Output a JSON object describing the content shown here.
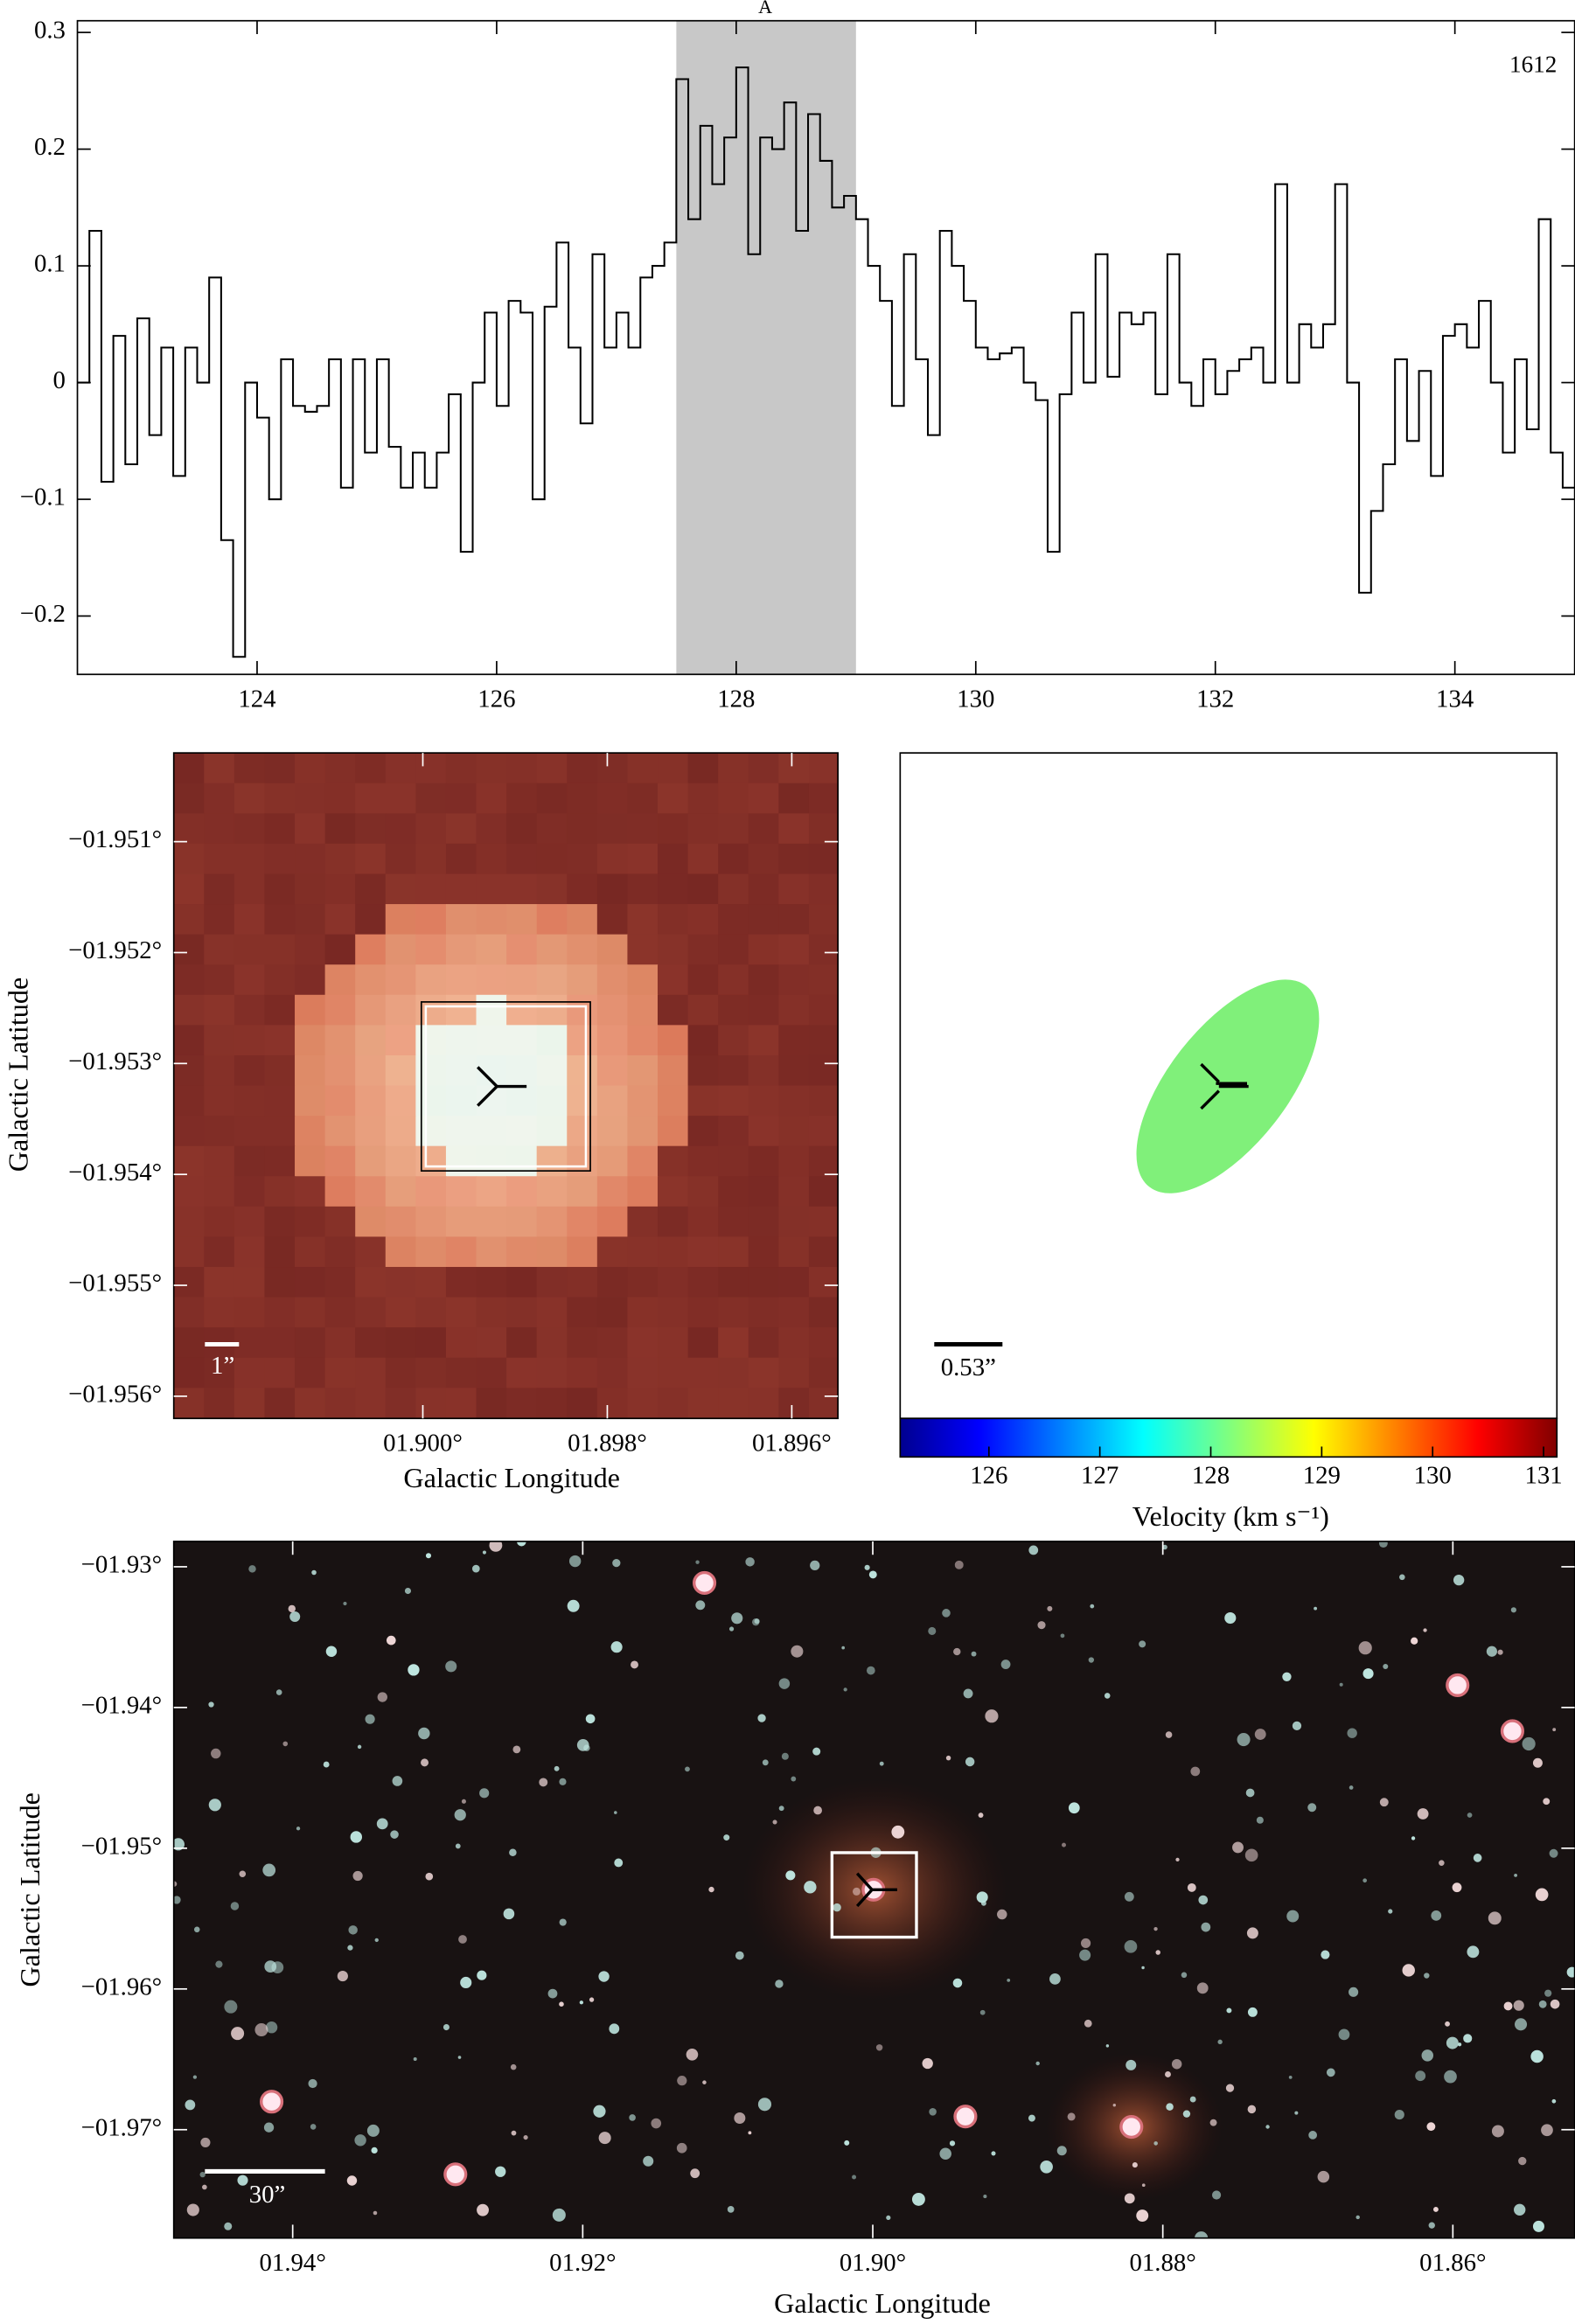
{
  "chart_data": [
    {
      "type": "step",
      "annotation": "A",
      "label": "1612",
      "color": "#000000",
      "shade_color": "#c8c8c8",
      "shaded_range": [
        127.5,
        129.0
      ],
      "x": [
        122.5,
        122.6,
        122.7,
        122.8,
        122.9,
        123.0,
        123.1,
        123.2,
        123.3,
        123.4,
        123.5,
        123.6,
        123.7,
        123.8,
        123.9,
        124.0,
        124.1,
        124.2,
        124.3,
        124.4,
        124.5,
        124.6,
        124.7,
        124.8,
        124.9,
        125.0,
        125.1,
        125.2,
        125.3,
        125.4,
        125.5,
        125.6,
        125.7,
        125.8,
        125.9,
        126.0,
        126.1,
        126.2,
        126.3,
        126.4,
        126.5,
        126.6,
        126.7,
        126.8,
        126.9,
        127.0,
        127.1,
        127.2,
        127.3,
        127.4,
        127.5,
        127.6,
        127.7,
        127.8,
        127.9,
        128.0,
        128.1,
        128.2,
        128.3,
        128.4,
        128.5,
        128.6,
        128.7,
        128.8,
        128.9,
        129.0,
        129.1,
        129.2,
        129.3,
        129.4,
        129.5,
        129.6,
        129.7,
        129.8,
        129.9,
        130.0,
        130.1,
        130.2,
        130.3,
        130.4,
        130.5,
        130.6,
        130.7,
        130.8,
        130.9,
        131.0,
        131.1,
        131.2,
        131.3,
        131.4,
        131.5,
        131.6,
        131.7,
        131.8,
        131.9,
        132.0,
        132.1,
        132.2,
        132.3,
        132.4,
        132.5,
        132.6,
        132.7,
        132.8,
        132.9,
        133.0,
        133.1,
        133.2,
        133.3,
        133.4,
        133.5,
        133.6,
        133.7,
        133.8,
        133.9,
        134.0,
        134.1,
        134.2,
        134.3,
        134.4,
        134.5,
        134.6,
        134.7,
        134.8,
        134.9
      ],
      "values": [
        0.0,
        0.13,
        -0.085,
        0.04,
        -0.07,
        0.055,
        -0.045,
        0.03,
        -0.08,
        0.03,
        0.0,
        0.09,
        -0.135,
        -0.235,
        0.0,
        -0.03,
        -0.1,
        0.02,
        -0.02,
        -0.025,
        -0.02,
        0.02,
        -0.09,
        0.02,
        -0.06,
        0.02,
        -0.055,
        -0.09,
        -0.06,
        -0.09,
        -0.06,
        -0.01,
        -0.145,
        0.0,
        0.06,
        -0.02,
        0.07,
        0.06,
        -0.1,
        0.065,
        0.12,
        0.03,
        -0.035,
        0.11,
        0.03,
        0.06,
        0.03,
        0.09,
        0.1,
        0.12,
        0.26,
        0.14,
        0.22,
        0.17,
        0.21,
        0.27,
        0.11,
        0.21,
        0.2,
        0.24,
        0.13,
        0.23,
        0.19,
        0.15,
        0.16,
        0.14,
        0.1,
        0.07,
        -0.02,
        0.11,
        0.02,
        -0.045,
        0.13,
        0.1,
        0.07,
        0.03,
        0.02,
        0.025,
        0.03,
        0.0,
        -0.015,
        -0.145,
        -0.01,
        0.06,
        0.0,
        0.11,
        0.005,
        0.06,
        0.05,
        0.06,
        -0.01,
        0.11,
        0.0,
        -0.02,
        0.02,
        -0.01,
        0.01,
        0.02,
        0.03,
        0.0,
        0.17,
        0.0,
        0.05,
        0.03,
        0.05,
        0.17,
        0.0,
        -0.18,
        -0.11,
        -0.07,
        0.02,
        -0.05,
        0.01,
        -0.08,
        0.04,
        0.05,
        0.03,
        0.07,
        0.0,
        -0.06,
        0.02,
        -0.04,
        0.14,
        -0.06,
        -0.09
      ],
      "xlim": [
        122.5,
        135
      ],
      "ylim": [
        -0.25,
        0.31
      ],
      "xticks": [
        124,
        126,
        128,
        130,
        132,
        134
      ],
      "yticks": [
        {
          "value": -0.2,
          "label": "−0.2"
        },
        {
          "value": -0.1,
          "label": "−0.1"
        },
        0,
        0.1,
        0.2,
        0.3
      ]
    },
    {
      "type": "image",
      "xlabel": "Galactic Longitude",
      "ylabel": "Galactic Latitude",
      "scale_bar": "1”",
      "xlim": [
        1.9027,
        1.8955
      ],
      "ylim": [
        -1.9562,
        -1.9502
      ],
      "xticks": [
        {
          "value": 1.9,
          "label": "01.900°"
        },
        {
          "value": 1.898,
          "label": "01.898°"
        },
        {
          "value": 1.896,
          "label": "01.896°"
        }
      ],
      "yticks": [
        {
          "value": -1.951,
          "label": "−01.951°"
        },
        {
          "value": -1.952,
          "label": "−01.952°"
        },
        {
          "value": -1.953,
          "label": "−01.953°"
        },
        {
          "value": -1.954,
          "label": "−01.954°"
        },
        {
          "value": -1.955,
          "label": "−01.955°"
        },
        {
          "value": -1.956,
          "label": "−01.956°"
        }
      ]
    },
    {
      "type": "velocity-map",
      "scale_bar": "0.53”",
      "colorbar_label": "Velocity (km s⁻¹)",
      "colormap": "jet",
      "clim": [
        125.2,
        131.12
      ],
      "cticks": [
        126,
        127,
        128,
        129,
        130,
        131
      ]
    },
    {
      "type": "image",
      "xlabel": "Galactic Longitude",
      "ylabel": "Galactic Latitude",
      "scale_bar": "30”",
      "xlim": [
        1.9482,
        1.8516
      ],
      "ylim": [
        -1.9777,
        -1.9282
      ],
      "xticks": [
        {
          "value": 1.94,
          "label": "01.94°"
        },
        {
          "value": 1.92,
          "label": "01.92°"
        },
        {
          "value": 1.9,
          "label": "01.90°"
        },
        {
          "value": 1.88,
          "label": "01.88°"
        },
        {
          "value": 1.86,
          "label": "01.86°"
        }
      ],
      "yticks": [
        {
          "value": -1.93,
          "label": "−01.93°"
        },
        {
          "value": -1.94,
          "label": "−01.94°"
        },
        {
          "value": -1.95,
          "label": "−01.95°"
        },
        {
          "value": -1.96,
          "label": "−01.96°"
        },
        {
          "value": -1.97,
          "label": "−01.97°"
        }
      ]
    }
  ]
}
